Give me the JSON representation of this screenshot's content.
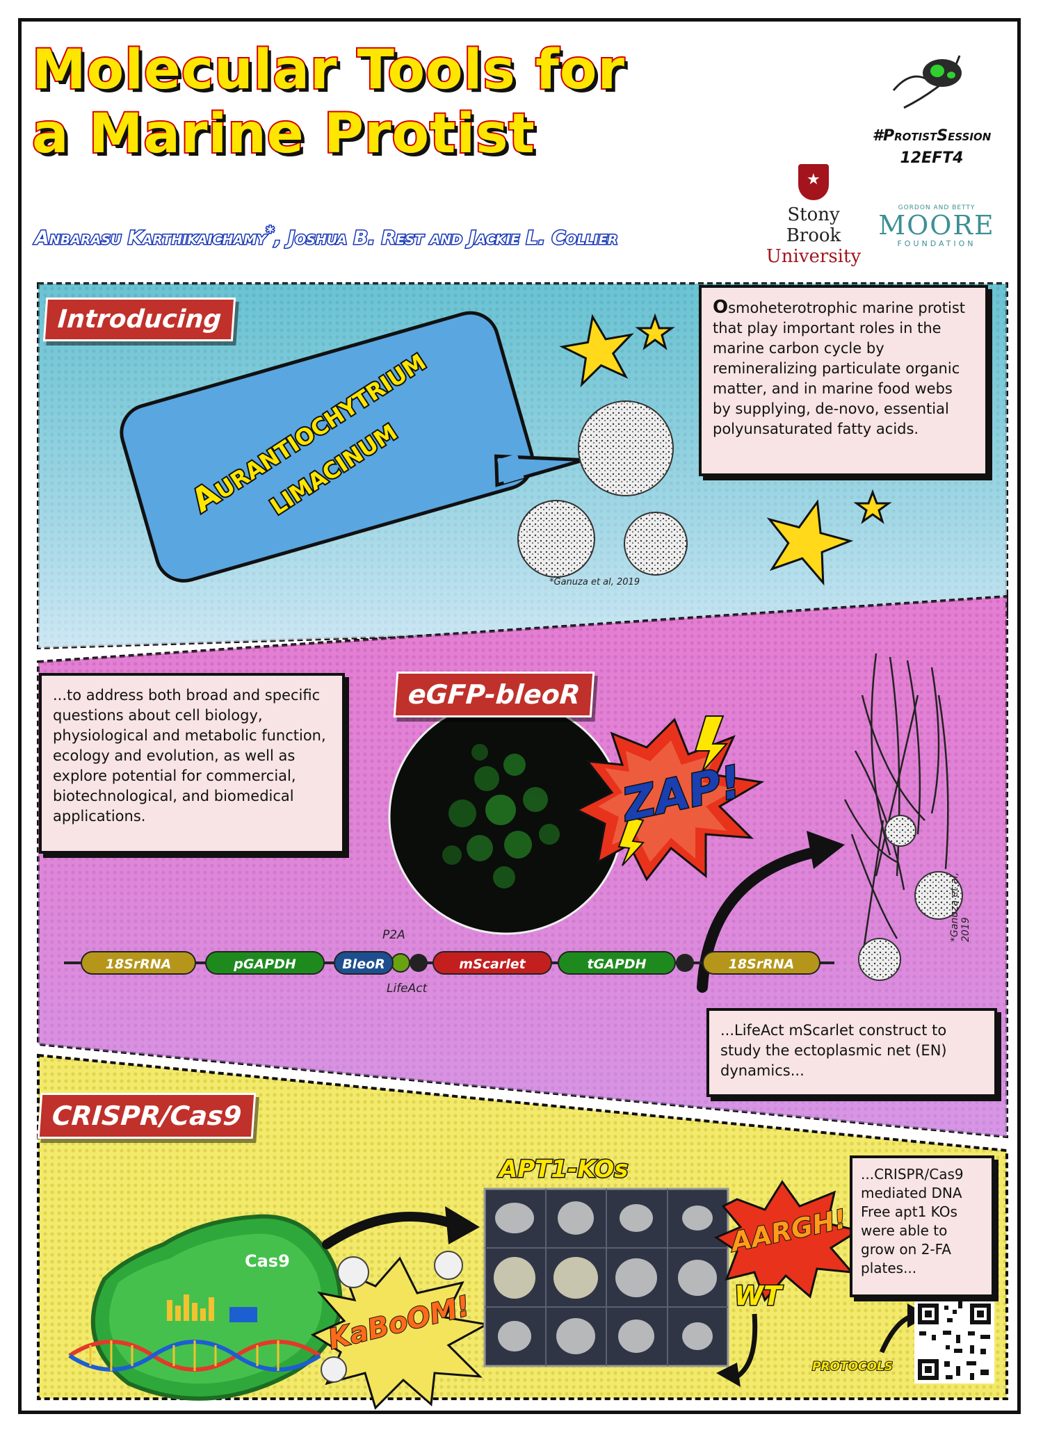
{
  "header": {
    "title_line1": "Molecular Tools for",
    "title_line2": "a Marine Protist",
    "authors": "Anbarasu Karthikaichamy",
    "authors_mark": "*",
    "authors_rest": ", Joshua B. Rest and Jackie L. Collier",
    "hashtag": "#ProtistSession",
    "session_code": "12EFT4",
    "sbu_line1": "Stony Brook",
    "sbu_line2": "University",
    "moore_line1": "GORDON AND BETTY",
    "moore_line2": "MOORE",
    "moore_line3": "FOUNDATION"
  },
  "intro": {
    "tag": "Introducing",
    "organism_line1": "Aurantiochytrium",
    "organism_line2": "limacinum",
    "description_dropcap": "O",
    "description": "smoheterotrophic marine protist that play important roles in the marine carbon cycle by remineralizing particulate organic matter, and in marine food webs by supplying, de-novo, essential polyunsaturated fatty acids.",
    "citation": "*Ganuza et al, 2019"
  },
  "egfp": {
    "tag": "eGFP-bleoR",
    "text": "...to address both broad and specific questions about cell biology, physiological and metabolic function, ecology and evolution, as well as explore potential for commercial, biotechnological, and biomedical applications.",
    "zap": "ZAP!",
    "citation": "*Ganuza et al, 2019",
    "construct": {
      "genes": [
        {
          "label": "18SrRNA",
          "color": "#b5961a"
        },
        {
          "label": "pGAPDH",
          "color": "#1e8a1e"
        },
        {
          "label": "BleoR",
          "color": "#1d4f8f"
        },
        {
          "label": "mScarlet",
          "color": "#c41f1f"
        },
        {
          "label": "tGAPDH",
          "color": "#1e8a1e"
        },
        {
          "label": "18SrRNA",
          "color": "#b5961a"
        }
      ],
      "p2a": "P2A",
      "lifeact": "LifeAct"
    },
    "lifeact_text": "...LifeAct mScarlet construct to study the ectoplasmic net (EN) dynamics..."
  },
  "crispr": {
    "tag": "CRISPR/Cas9",
    "cas9_label": "Cas9",
    "kaboom": "KaBoOM!",
    "apt_title": "APT1-KOs",
    "aargh": "AARGH!",
    "wt": "WT",
    "text": "...CRISPR/Cas9 mediated DNA Free apt1 KOs were able to grow on 2-FA plates...",
    "protocols": "PROTOCOLS"
  },
  "colors": {
    "title_fill": "#ffe600",
    "title_stroke": "#d40000",
    "tag_bg": "#c0312b",
    "panel1_bg": "#6fc7d6",
    "panel2_bg": "#e58ad3",
    "panel3_bg": "#f4ec6c"
  }
}
